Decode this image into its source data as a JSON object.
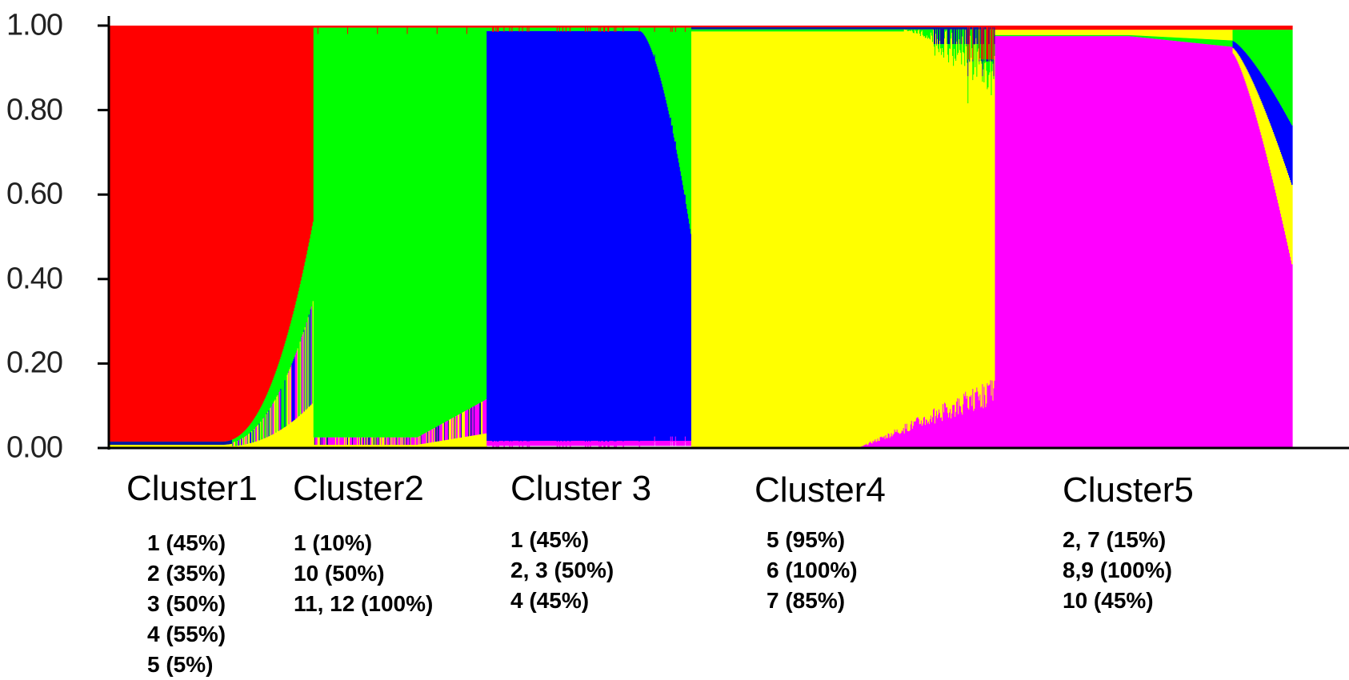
{
  "chart_data": {
    "type": "bar",
    "stacked": true,
    "ylim": [
      0,
      1
    ],
    "yticks": [
      "0.00",
      "0.20",
      "0.40",
      "0.60",
      "0.80",
      "1.00"
    ],
    "colors": {
      "red": "#ff0000",
      "green": "#00ff00",
      "blue": "#0000ff",
      "yellow": "#ffff00",
      "magenta": "#ff00ff",
      "navy": "#0a1a9a"
    },
    "clusters": [
      {
        "title": "Cluster1",
        "lines": [
          "1 (45%)",
          "2 (35%)",
          "3 (50%)",
          "4 (55%)",
          "5 (5%)"
        ]
      },
      {
        "title": "Cluster2",
        "lines": [
          "1 (10%)",
          "10 (50%)",
          "11, 12 (100%)"
        ]
      },
      {
        "title": "Cluster 3",
        "lines": [
          "1 (45%)",
          "2, 3 (50%)",
          "4 (45%)"
        ]
      },
      {
        "title": "Cluster4",
        "lines": [
          "5 (95%)",
          "6 (100%)",
          "7 (85%)"
        ]
      },
      {
        "title": "Cluster5",
        "lines": [
          "2, 7 (15%)",
          "8,9 (100%)",
          "10 (45%)"
        ]
      }
    ]
  }
}
